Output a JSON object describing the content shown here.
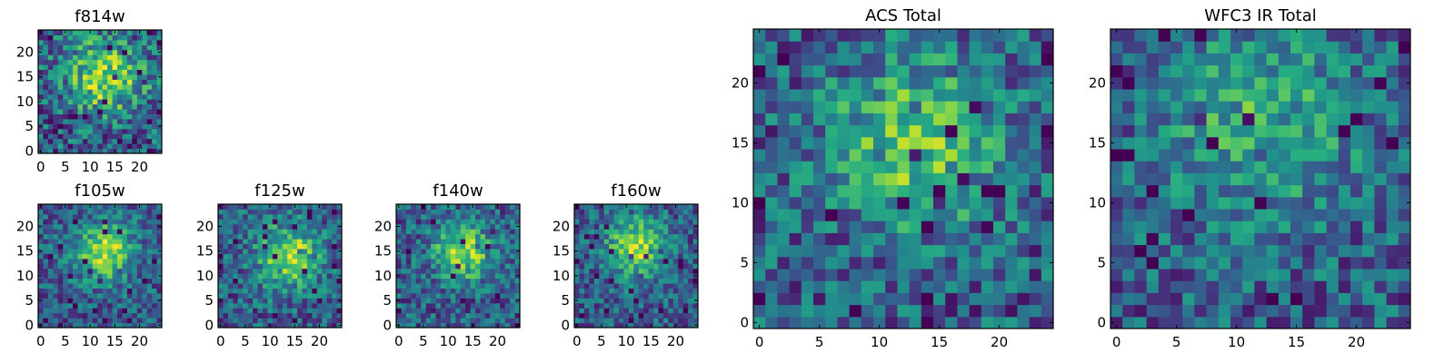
{
  "figure_title": "",
  "colormap": "viridis",
  "colormap_colors": [
    "#440154",
    "#3b528b",
    "#21918c",
    "#5ec962",
    "#fde725"
  ],
  "chart_data": [
    {
      "type": "heatmap",
      "title": "f814w",
      "grid": 25,
      "xlim": [
        0,
        24
      ],
      "ylim": [
        0,
        24
      ],
      "x_ticks": [
        0,
        5,
        10,
        15,
        20
      ],
      "y_ticks": [
        0,
        5,
        10,
        15,
        20
      ],
      "x_tick_labels": [
        "0",
        "5",
        "10",
        "15",
        "20"
      ],
      "y_tick_labels": [
        "0",
        "5",
        "10",
        "15",
        "20"
      ],
      "source_center": [
        13,
        15
      ],
      "source_width": 5.5,
      "peak_value": 0.55,
      "noise": 0.3,
      "seed": 11
    },
    {
      "type": "heatmap",
      "title": "f105w",
      "grid": 25,
      "xlim": [
        0,
        24
      ],
      "ylim": [
        0,
        24
      ],
      "x_ticks": [
        0,
        5,
        10,
        15,
        20
      ],
      "y_ticks": [
        0,
        5,
        10,
        15,
        20
      ],
      "x_tick_labels": [
        "0",
        "5",
        "10",
        "15",
        "20"
      ],
      "y_tick_labels": [
        "0",
        "5",
        "10",
        "15",
        "20"
      ],
      "source_center": [
        13,
        15
      ],
      "source_width": 4.0,
      "peak_value": 0.6,
      "noise": 0.22,
      "seed": 23
    },
    {
      "type": "heatmap",
      "title": "f125w",
      "grid": 25,
      "xlim": [
        0,
        24
      ],
      "ylim": [
        0,
        24
      ],
      "x_ticks": [
        0,
        5,
        10,
        15,
        20
      ],
      "y_ticks": [
        0,
        5,
        10,
        15,
        20
      ],
      "x_tick_labels": [
        "0",
        "5",
        "10",
        "15",
        "20"
      ],
      "y_tick_labels": [
        "0",
        "5",
        "10",
        "15",
        "20"
      ],
      "source_center": [
        14,
        14
      ],
      "source_width": 4.5,
      "peak_value": 0.55,
      "noise": 0.24,
      "seed": 37
    },
    {
      "type": "heatmap",
      "title": "f140w",
      "grid": 25,
      "xlim": [
        0,
        24
      ],
      "ylim": [
        0,
        24
      ],
      "x_ticks": [
        0,
        5,
        10,
        15,
        20
      ],
      "y_ticks": [
        0,
        5,
        10,
        15,
        20
      ],
      "x_tick_labels": [
        "0",
        "5",
        "10",
        "15",
        "20"
      ],
      "y_tick_labels": [
        "0",
        "5",
        "10",
        "15",
        "20"
      ],
      "source_center": [
        13,
        15
      ],
      "source_width": 4.0,
      "peak_value": 0.55,
      "noise": 0.24,
      "seed": 41
    },
    {
      "type": "heatmap",
      "title": "f160w",
      "grid": 25,
      "xlim": [
        0,
        24
      ],
      "ylim": [
        0,
        24
      ],
      "x_ticks": [
        0,
        5,
        10,
        15,
        20
      ],
      "y_ticks": [
        0,
        5,
        10,
        15,
        20
      ],
      "x_tick_labels": [
        "0",
        "5",
        "10",
        "15",
        "20"
      ],
      "y_tick_labels": [
        "0",
        "5",
        "10",
        "15",
        "20"
      ],
      "source_center": [
        12,
        16
      ],
      "source_width": 4.0,
      "peak_value": 0.6,
      "noise": 0.22,
      "seed": 53
    },
    {
      "type": "heatmap",
      "title": "ACS Total",
      "grid": 25,
      "xlim": [
        0,
        24
      ],
      "ylim": [
        0,
        24
      ],
      "x_ticks": [
        0,
        5,
        10,
        15,
        20
      ],
      "y_ticks": [
        0,
        5,
        10,
        15,
        20
      ],
      "x_tick_labels": [
        "0",
        "5",
        "10",
        "15",
        "20"
      ],
      "y_tick_labels": [
        "0",
        "5",
        "10",
        "15",
        "20"
      ],
      "source_center": [
        13,
        15
      ],
      "source_width": 5.0,
      "peak_value": 0.45,
      "noise": 0.26,
      "seed": 67
    },
    {
      "type": "heatmap",
      "title": "WFC3 IR Total",
      "grid": 25,
      "xlim": [
        0,
        24
      ],
      "ylim": [
        0,
        24
      ],
      "x_ticks": [
        0,
        5,
        10,
        15,
        20
      ],
      "y_ticks": [
        0,
        5,
        10,
        15,
        20
      ],
      "x_tick_labels": [
        "0",
        "5",
        "10",
        "15",
        "20"
      ],
      "y_tick_labels": [
        "0",
        "5",
        "10",
        "15",
        "20"
      ],
      "source_center": [
        12,
        17
      ],
      "source_width": 6.0,
      "peak_value": 0.3,
      "noise": 0.24,
      "seed": 79
    }
  ]
}
